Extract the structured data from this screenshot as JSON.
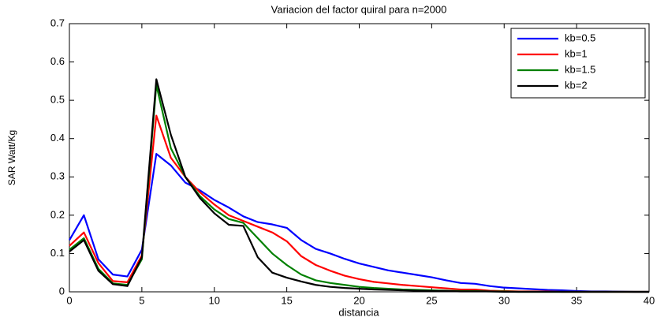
{
  "chart_data": {
    "type": "line",
    "title": "Variacion del factor quiral para n=2000",
    "x_label": "distancia",
    "y_label": "SAR Watt/Kg",
    "x": [
      0,
      1,
      2,
      3,
      4,
      5,
      6,
      7,
      8,
      9,
      10,
      11,
      12,
      13,
      14,
      15,
      16,
      17,
      18,
      19,
      20,
      21,
      22,
      23,
      24,
      25,
      26,
      27,
      28,
      29,
      30,
      31,
      32,
      33,
      34,
      35,
      36,
      37,
      38,
      39,
      40
    ],
    "series": [
      {
        "name": "kb=0.5",
        "color": "#0000ff",
        "values": [
          0.135,
          0.2,
          0.085,
          0.045,
          0.04,
          0.11,
          0.36,
          0.33,
          0.285,
          0.265,
          0.24,
          0.22,
          0.197,
          0.182,
          0.176,
          0.167,
          0.135,
          0.112,
          0.1,
          0.086,
          0.074,
          0.065,
          0.056,
          0.05,
          0.044,
          0.038,
          0.03,
          0.023,
          0.021,
          0.015,
          0.011,
          0.009,
          0.007,
          0.005,
          0.004,
          0.002,
          0.001,
          0.001,
          0.0005,
          0,
          0
        ]
      },
      {
        "name": "kb=1",
        "color": "#ff0000",
        "values": [
          0.12,
          0.155,
          0.075,
          0.028,
          0.025,
          0.095,
          0.46,
          0.35,
          0.3,
          0.26,
          0.228,
          0.2,
          0.185,
          0.17,
          0.155,
          0.132,
          0.093,
          0.07,
          0.055,
          0.042,
          0.033,
          0.026,
          0.022,
          0.018,
          0.015,
          0.012,
          0.009,
          0.006,
          0.006,
          0.003,
          0.002,
          0.001,
          0.001,
          0.001,
          0,
          0,
          0,
          0,
          0,
          0,
          0
        ]
      },
      {
        "name": "kb=1.5",
        "color": "#008000",
        "values": [
          0.11,
          0.14,
          0.06,
          0.022,
          0.018,
          0.085,
          0.54,
          0.375,
          0.3,
          0.25,
          0.215,
          0.19,
          0.18,
          0.14,
          0.1,
          0.07,
          0.045,
          0.03,
          0.023,
          0.018,
          0.013,
          0.01,
          0.008,
          0.006,
          0.005,
          0.004,
          0.003,
          0.002,
          0.002,
          0.001,
          0.001,
          0,
          0,
          0,
          0,
          0,
          0,
          0,
          0,
          0,
          0
        ]
      },
      {
        "name": "kb=2",
        "color": "#000000",
        "values": [
          0.105,
          0.135,
          0.055,
          0.02,
          0.015,
          0.09,
          0.555,
          0.41,
          0.3,
          0.245,
          0.205,
          0.175,
          0.172,
          0.09,
          0.05,
          0.037,
          0.027,
          0.018,
          0.013,
          0.01,
          0.008,
          0.006,
          0.005,
          0.004,
          0.003,
          0.002,
          0.002,
          0.001,
          0.001,
          0.001,
          0,
          0,
          0,
          0,
          0,
          0,
          0,
          0,
          0,
          0,
          0
        ]
      }
    ],
    "xlim": [
      0,
      40
    ],
    "xticks": [
      0,
      5,
      10,
      15,
      20,
      25,
      30,
      35,
      40
    ],
    "ylim": [
      0,
      0.7
    ],
    "yticks": [
      0,
      0.1,
      0.2,
      0.3,
      0.4,
      0.5,
      0.6,
      0.7
    ],
    "legend": "upper right"
  }
}
